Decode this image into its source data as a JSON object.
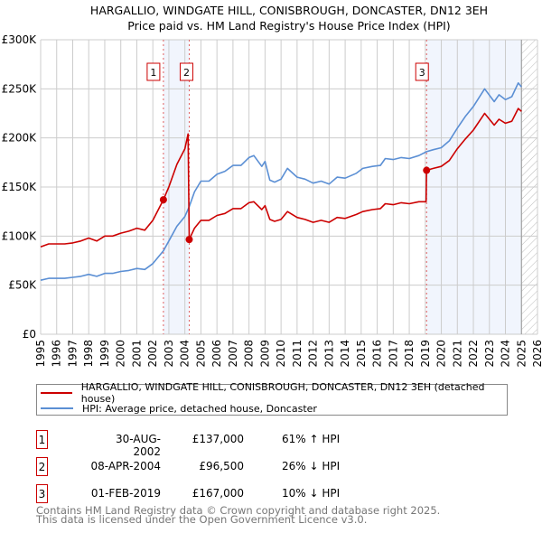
{
  "chart_data": {
    "type": "line",
    "title": "HARGALLIO, WINDGATE HILL, CONISBROUGH, DONCASTER, DN12 3EH",
    "subtitle": "Price paid vs. HM Land Registry's House Price Index (HPI)",
    "xlim": [
      1995,
      2026
    ],
    "ylim": [
      0,
      300000
    ],
    "grid": true,
    "x_ticks": [
      "1995",
      "1996",
      "1997",
      "1998",
      "1999",
      "2000",
      "2001",
      "2002",
      "2003",
      "2004",
      "2005",
      "2006",
      "2007",
      "2008",
      "2009",
      "2010",
      "2011",
      "2012",
      "2013",
      "2014",
      "2015",
      "2016",
      "2017",
      "2018",
      "2019",
      "2020",
      "2021",
      "2022",
      "2023",
      "2024",
      "2025",
      "2026"
    ],
    "y_ticks": [
      {
        "v": 0,
        "label": "£0"
      },
      {
        "v": 50000,
        "label": "£50K"
      },
      {
        "v": 100000,
        "label": "£100K"
      },
      {
        "v": 150000,
        "label": "£150K"
      },
      {
        "v": 200000,
        "label": "£200K"
      },
      {
        "v": 250000,
        "label": "£250K"
      },
      {
        "v": 300000,
        "label": "£300K"
      }
    ],
    "shaded_ranges": [
      [
        2002.66,
        2004.27
      ],
      [
        2019.08,
        2025.0
      ]
    ],
    "forecast_hatch_from": 2025.0,
    "series": [
      {
        "name": "HARGALLIO, WINDGATE HILL, CONISBROUGH, DONCASTER, DN12 3EH (detached house)",
        "color": "#cc0000",
        "x": [
          1995,
          1995.5,
          1996,
          1996.5,
          1997,
          1997.5,
          1998,
          1998.5,
          1999,
          1999.5,
          2000,
          2000.5,
          2001,
          2001.5,
          2002,
          2002.66,
          2003,
          2003.5,
          2004,
          2004.2,
          2004.27,
          2004.6,
          2005,
          2005.5,
          2006,
          2006.5,
          2007,
          2007.5,
          2008,
          2008.3,
          2008.8,
          2009.0,
          2009.3,
          2009.6,
          2010,
          2010.4,
          2011,
          2011.5,
          2012,
          2012.5,
          2013,
          2013.5,
          2014,
          2014.7,
          2015.1,
          2015.7,
          2016.2,
          2016.5,
          2017,
          2017.5,
          2018,
          2018.6,
          2019.05,
          2019.08,
          2019.5,
          2020,
          2020.5,
          2021,
          2021.5,
          2022,
          2022.7,
          2023.3,
          2023.6,
          2024,
          2024.4,
          2024.8,
          2025
        ],
        "y": [
          89,
          92,
          92,
          92,
          93,
          95,
          98,
          95,
          100,
          100,
          103,
          105,
          108,
          106,
          116,
          137,
          150,
          173,
          189,
          204,
          96.5,
          108,
          116,
          116,
          121,
          123,
          128,
          128,
          134,
          135,
          127,
          131,
          117,
          115,
          117,
          125,
          119,
          117,
          114,
          116,
          114,
          119,
          118,
          122,
          125,
          127,
          128,
          133,
          132,
          134,
          133,
          135,
          135,
          167,
          169,
          171,
          177,
          189,
          199,
          208,
          225,
          213,
          219,
          215,
          217,
          230,
          227
        ]
      },
      {
        "name": "HPI: Average price, detached house, Doncaster",
        "color": "#5b8fd4",
        "x": [
          1995,
          1995.5,
          1996,
          1996.5,
          1997,
          1997.5,
          1998,
          1998.5,
          1999,
          1999.5,
          2000,
          2000.5,
          2001,
          2001.5,
          2002,
          2002.66,
          2003,
          2003.5,
          2004,
          2004.27,
          2004.6,
          2005,
          2005.5,
          2006,
          2006.5,
          2007,
          2007.5,
          2008,
          2008.3,
          2008.8,
          2009.0,
          2009.3,
          2009.6,
          2010,
          2010.4,
          2011,
          2011.5,
          2012,
          2012.5,
          2013,
          2013.5,
          2014,
          2014.7,
          2015.1,
          2015.7,
          2016.2,
          2016.5,
          2017,
          2017.5,
          2018,
          2018.6,
          2019.08,
          2019.5,
          2020,
          2020.5,
          2021,
          2021.5,
          2022,
          2022.7,
          2023.3,
          2023.6,
          2024,
          2024.4,
          2024.8,
          2025
        ],
        "y": [
          55,
          57,
          57,
          57,
          58,
          59,
          61,
          59,
          62,
          62,
          64,
          65,
          67,
          66,
          72,
          85,
          95,
          110,
          120,
          130,
          145,
          156,
          156,
          163,
          166,
          172,
          172,
          180,
          182,
          171,
          176,
          157,
          155,
          158,
          169,
          160,
          158,
          154,
          156,
          153,
          160,
          159,
          164,
          169,
          171,
          172,
          179,
          178,
          180,
          179,
          182,
          186,
          188,
          190,
          197,
          210,
          222,
          232,
          250,
          237,
          244,
          239,
          242,
          256,
          252
        ]
      }
    ],
    "y_units": 1000,
    "sales": [
      {
        "label": "1",
        "x": 2002.66,
        "y": 137
      },
      {
        "label": "2",
        "x": 2004.27,
        "y": 96.5
      },
      {
        "label": "3",
        "x": 2019.08,
        "y": 167
      }
    ]
  },
  "legend": {
    "property": "HARGALLIO, WINDGATE HILL, CONISBROUGH, DONCASTER, DN12 3EH (detached house)",
    "hpi": "HPI: Average price, detached house, Doncaster"
  },
  "table": [
    {
      "num": "1",
      "date": "30-AUG-2002",
      "price": "£137,000",
      "hpi": "61% ↑ HPI"
    },
    {
      "num": "2",
      "date": "08-APR-2004",
      "price": "£96,500",
      "hpi": "26% ↓ HPI"
    },
    {
      "num": "3",
      "date": "01-FEB-2019",
      "price": "£167,000",
      "hpi": "10% ↓ HPI"
    }
  ],
  "footer": {
    "line1": "Contains HM Land Registry data © Crown copyright and database right 2025.",
    "line2": "This data is licensed under the Open Government Licence v3.0."
  }
}
